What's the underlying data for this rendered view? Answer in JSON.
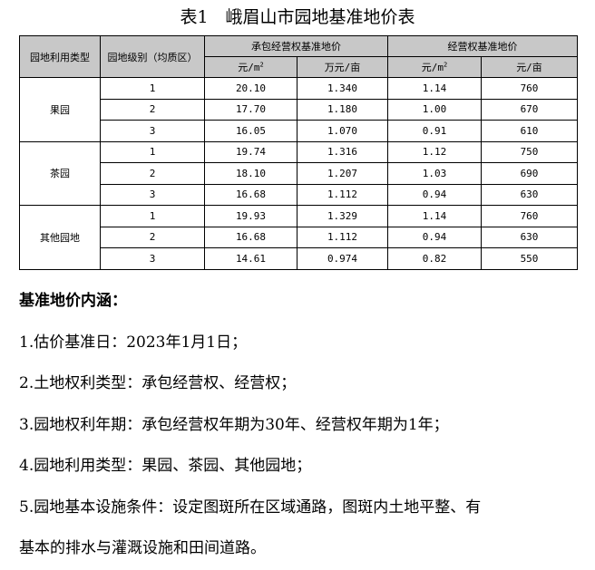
{
  "title": "表1　峨眉山市园地基准地价表",
  "table": {
    "h_type": "园地利用类型",
    "h_level": "园地级别（均质区）",
    "h_contract": "承包经营权基准地价",
    "h_operate": "经营权基准地价",
    "u1": "元/m",
    "u1sup": "2",
    "u2": "万元/亩",
    "u3": "元/m",
    "u3sup": "2",
    "u4": "元/亩",
    "groups": [
      {
        "name": "果园",
        "rows": [
          [
            "1",
            "20.10",
            "1.340",
            "1.14",
            "760"
          ],
          [
            "2",
            "17.70",
            "1.180",
            "1.00",
            "670"
          ],
          [
            "3",
            "16.05",
            "1.070",
            "0.91",
            "610"
          ]
        ]
      },
      {
        "name": "茶园",
        "rows": [
          [
            "1",
            "19.74",
            "1.316",
            "1.12",
            "750"
          ],
          [
            "2",
            "18.10",
            "1.207",
            "1.03",
            "690"
          ],
          [
            "3",
            "16.68",
            "1.112",
            "0.94",
            "630"
          ]
        ]
      },
      {
        "name": "其他园地",
        "rows": [
          [
            "1",
            "19.93",
            "1.329",
            "1.14",
            "760"
          ],
          [
            "2",
            "16.68",
            "1.112",
            "0.94",
            "630"
          ],
          [
            "3",
            "14.61",
            "0.974",
            "0.82",
            "550"
          ]
        ]
      }
    ]
  },
  "notes": {
    "heading": "基准地价内涵：",
    "lines": [
      "1.估价基准日：2023年1月1日；",
      "2.土地权利类型：承包经营权、经营权；",
      "3.园地权利年期：承包经营权年期为30年、经营权年期为1年；",
      "4.园地利用类型：果园、茶园、其他园地；",
      "5.园地基本设施条件：设定图斑所在区域通路，图斑内土地平整、有",
      "基本的排水与灌溉设施和田间道路。"
    ]
  }
}
